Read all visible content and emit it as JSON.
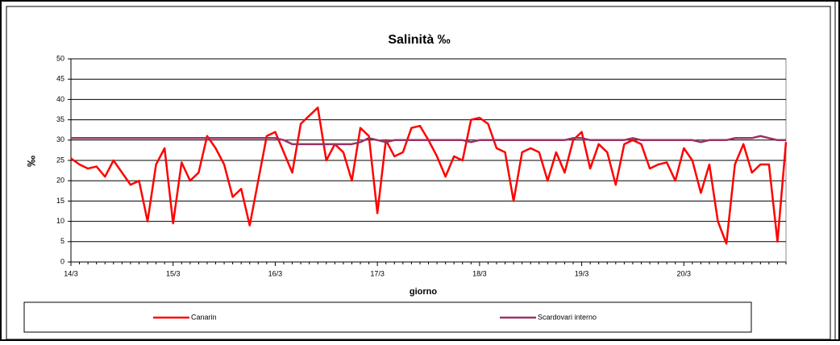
{
  "chart_data": {
    "type": "line",
    "title": "Salinità ‰",
    "x_label": "giorno",
    "y_label": "‰",
    "categories": [
      "14/3",
      null,
      null,
      null,
      null,
      null,
      null,
      null,
      null,
      null,
      null,
      null,
      "15/3",
      null,
      null,
      null,
      null,
      null,
      null,
      null,
      null,
      null,
      null,
      null,
      "16/3",
      null,
      null,
      null,
      null,
      null,
      null,
      null,
      null,
      null,
      null,
      null,
      "17/3",
      null,
      null,
      null,
      null,
      null,
      null,
      null,
      null,
      null,
      null,
      null,
      "18/3",
      null,
      null,
      null,
      null,
      null,
      null,
      null,
      null,
      null,
      null,
      null,
      "19/3",
      null,
      null,
      null,
      null,
      null,
      null,
      null,
      null,
      null,
      null,
      null,
      "20/3",
      null,
      null,
      null,
      null,
      null,
      null,
      null,
      null,
      null,
      null,
      null,
      null
    ],
    "series": [
      {
        "name": "Canarin",
        "color": "#ff0000",
        "values": [
          25.5,
          24,
          23,
          23.5,
          21,
          25,
          22,
          19,
          20,
          10,
          24,
          28,
          9.5,
          24.5,
          20,
          22,
          31,
          28,
          24,
          16,
          18,
          9,
          20,
          31,
          32,
          27,
          22,
          34,
          36,
          38,
          25,
          29,
          27,
          20,
          33,
          31,
          12,
          30,
          26,
          27,
          33,
          33.5,
          30,
          26,
          21,
          26,
          25,
          35,
          35.5,
          34,
          28,
          27,
          15,
          27,
          28,
          27,
          20,
          27,
          22,
          30,
          32,
          23,
          29,
          27,
          19,
          29,
          30,
          29,
          23,
          24,
          24.5,
          20,
          28,
          25,
          17,
          24,
          10,
          4.5,
          24,
          29,
          22,
          24,
          24,
          5,
          29.5
        ]
      },
      {
        "name": "Scardovari interno",
        "color": "#993366",
        "values": [
          30.5,
          30.5,
          30.5,
          30.5,
          30.5,
          30.5,
          30.5,
          30.5,
          30.5,
          30.5,
          30.5,
          30.5,
          30.5,
          30.5,
          30.5,
          30.5,
          30.5,
          30.5,
          30.5,
          30.5,
          30.5,
          30.5,
          30.5,
          30.5,
          30.5,
          30,
          29,
          29,
          29,
          29,
          29,
          29,
          29,
          29,
          29.5,
          30.5,
          30,
          29.5,
          30,
          30,
          30,
          30,
          30,
          30,
          30,
          30,
          30,
          29.5,
          30,
          30,
          30,
          30,
          30,
          30,
          30,
          30,
          30,
          30,
          30,
          30.5,
          30.5,
          30,
          30,
          30,
          30,
          30,
          30.5,
          30,
          30,
          30,
          30,
          30,
          30,
          30,
          29.5,
          30,
          30,
          30,
          30.5,
          30.5,
          30.5,
          31,
          30.5,
          30,
          30
        ]
      }
    ],
    "ylim": [
      0,
      50
    ],
    "yticks": [
      0,
      5,
      10,
      15,
      20,
      25,
      30,
      35,
      40,
      45,
      50
    ],
    "grid": true
  }
}
